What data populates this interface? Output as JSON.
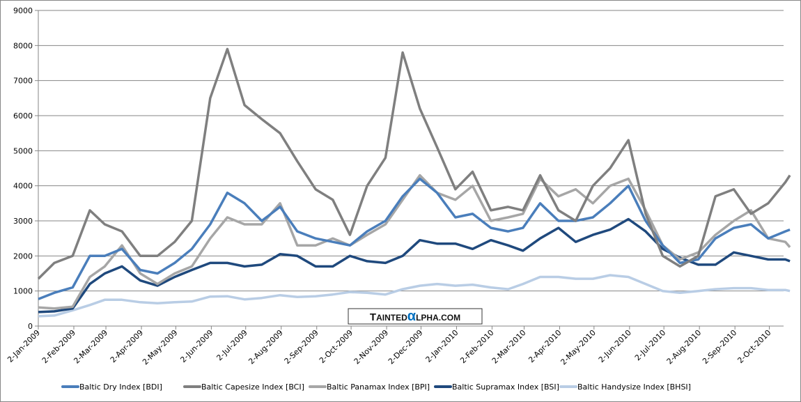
{
  "chart_data": {
    "type": "line",
    "title": "",
    "xlabel": "",
    "ylabel": "",
    "ylim": [
      0,
      9000
    ],
    "yticks": [
      0,
      1000,
      2000,
      3000,
      4000,
      5000,
      6000,
      7000,
      8000,
      9000
    ],
    "xlim": [
      "2009-01-02",
      "2010-10-22"
    ],
    "xtick_labels": [
      "2-Jan-2009",
      "2-Feb-2009",
      "2-Mar-2009",
      "2-Apr-2009",
      "2-May-2009",
      "2-Jun-2009",
      "2-Jul-2009",
      "2-Aug-2009",
      "2-Sep-2009",
      "2-Oct-2009",
      "2-Nov-2009",
      "2-Dec-2009",
      "2-Jan-2010",
      "2-Feb-2010",
      "2-Mar-2010",
      "2-Apr-2010",
      "2-May-2010",
      "2-Jun-2010",
      "2-Jul-2010",
      "2-Aug-2010",
      "2-Sep-2010",
      "2-Oct-2010"
    ],
    "xtick_dates": [
      "2009-01-02",
      "2009-02-02",
      "2009-03-02",
      "2009-04-02",
      "2009-05-02",
      "2009-06-02",
      "2009-07-02",
      "2009-08-02",
      "2009-09-02",
      "2009-10-02",
      "2009-11-02",
      "2009-12-02",
      "2010-01-02",
      "2010-02-02",
      "2010-03-02",
      "2010-04-02",
      "2010-05-02",
      "2010-06-02",
      "2010-07-02",
      "2010-08-02",
      "2010-09-02",
      "2010-10-02"
    ],
    "grid": "horizontal",
    "legend_position": "bottom",
    "x": [
      "2009-01-02",
      "2009-01-16",
      "2009-02-01",
      "2009-02-16",
      "2009-03-01",
      "2009-03-16",
      "2009-04-01",
      "2009-04-16",
      "2009-05-01",
      "2009-05-16",
      "2009-06-01",
      "2009-06-16",
      "2009-07-01",
      "2009-07-16",
      "2009-08-01",
      "2009-08-16",
      "2009-09-01",
      "2009-09-16",
      "2009-10-01",
      "2009-10-16",
      "2009-11-01",
      "2009-11-16",
      "2009-12-01",
      "2009-12-16",
      "2010-01-01",
      "2010-01-16",
      "2010-02-01",
      "2010-02-16",
      "2010-03-01",
      "2010-03-16",
      "2010-04-01",
      "2010-04-16",
      "2010-05-01",
      "2010-05-16",
      "2010-06-01",
      "2010-06-16",
      "2010-07-01",
      "2010-07-16",
      "2010-08-01",
      "2010-08-16",
      "2010-09-01",
      "2010-09-16",
      "2010-10-01",
      "2010-10-16",
      "2010-10-20"
    ],
    "series": [
      {
        "name": "Baltic Dry Index [BDI]",
        "color": "#4a7ebb",
        "values": [
          770,
          950,
          1100,
          2000,
          2000,
          2200,
          1600,
          1500,
          1800,
          2200,
          2900,
          3800,
          3500,
          3000,
          3400,
          2700,
          2500,
          2400,
          2300,
          2700,
          3000,
          3700,
          4200,
          3800,
          3100,
          3200,
          2800,
          2700,
          2800,
          3500,
          3000,
          3000,
          3100,
          3500,
          4000,
          3000,
          2300,
          1800,
          1900,
          2500,
          2800,
          2900,
          2500,
          2700,
          2750
        ]
      },
      {
        "name": "Baltic Capesize Index [BCI]",
        "color": "#7f7f7f",
        "values": [
          1350,
          1800,
          2000,
          3300,
          2900,
          2700,
          2000,
          2000,
          2400,
          3000,
          6500,
          7900,
          6300,
          5900,
          5500,
          4700,
          3900,
          3600,
          2600,
          4000,
          4800,
          7800,
          6200,
          5100,
          3900,
          4400,
          3300,
          3400,
          3300,
          4300,
          3300,
          3000,
          4000,
          4500,
          5300,
          3200,
          2000,
          1700,
          2000,
          3700,
          3900,
          3200,
          3500,
          4100,
          4300
        ]
      },
      {
        "name": "Baltic Panamax Index [BPI]",
        "color": "#a6a6a6",
        "values": [
          530,
          500,
          550,
          1400,
          1700,
          2300,
          1500,
          1200,
          1500,
          1700,
          2500,
          3100,
          2900,
          2900,
          3500,
          2300,
          2300,
          2500,
          2300,
          2600,
          2900,
          3600,
          4300,
          3800,
          3600,
          4000,
          3000,
          3100,
          3200,
          4200,
          3700,
          3900,
          3500,
          4000,
          4200,
          3300,
          2300,
          1900,
          2100,
          2600,
          3000,
          3300,
          2500,
          2400,
          2250
        ]
      },
      {
        "name": "Baltic Supramax Index [BSI]",
        "color": "#1f497d",
        "values": [
          400,
          420,
          500,
          1200,
          1500,
          1700,
          1300,
          1150,
          1400,
          1600,
          1800,
          1800,
          1700,
          1750,
          2050,
          2000,
          1700,
          1700,
          2000,
          1850,
          1800,
          2000,
          2450,
          2350,
          2350,
          2200,
          2450,
          2300,
          2150,
          2500,
          2800,
          2400,
          2600,
          2750,
          3050,
          2700,
          2200,
          1950,
          1750,
          1750,
          2100,
          2000,
          1900,
          1900,
          1850
        ]
      },
      {
        "name": "Baltic Handysize Index [BHSI]",
        "color": "#b9cde5",
        "values": [
          280,
          300,
          450,
          600,
          750,
          750,
          680,
          650,
          680,
          700,
          840,
          850,
          760,
          800,
          880,
          830,
          850,
          900,
          970,
          950,
          900,
          1050,
          1150,
          1200,
          1150,
          1180,
          1100,
          1050,
          1200,
          1400,
          1400,
          1350,
          1350,
          1450,
          1400,
          1200,
          1000,
          950,
          1000,
          1050,
          1080,
          1080,
          1030,
          1030,
          1000
        ]
      }
    ]
  },
  "logo": {
    "text": "TAINTEDαLPHA.COM"
  }
}
